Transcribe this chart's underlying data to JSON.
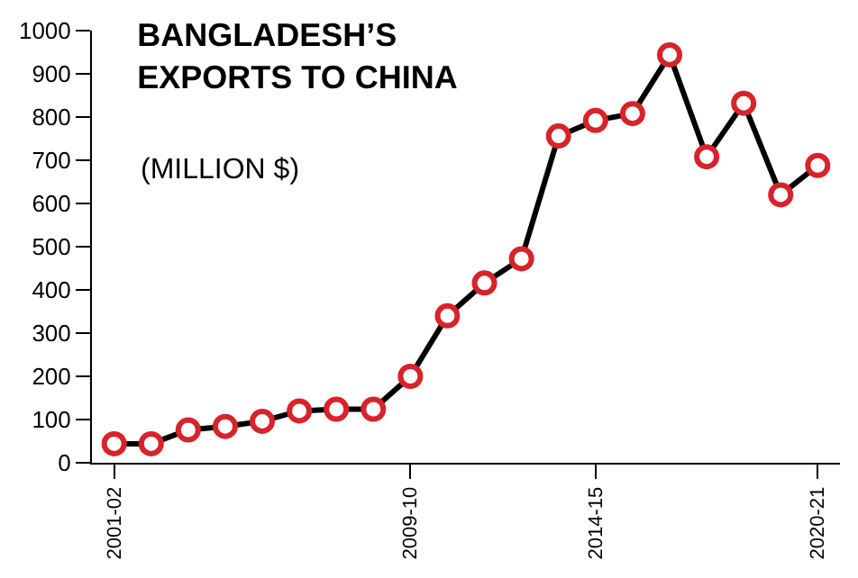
{
  "chart_data": {
    "type": "line",
    "title": "BANGLADESH’S\nEXPORTS TO CHINA",
    "subtitle": "(MILLION $)",
    "categories": [
      "2001-02",
      null,
      null,
      null,
      null,
      null,
      null,
      null,
      "2009-10",
      null,
      null,
      null,
      null,
      "2014-15",
      null,
      null,
      null,
      null,
      null,
      "2020-21"
    ],
    "series": [
      {
        "color": "#000000",
        "colors": [
          "#d7232a",
          "#d7232a",
          "#d7232a",
          "#d7232a",
          "#d7232a",
          "#d7232a",
          "#d7232a",
          "#d7232a",
          "#d7232a",
          "#d7232a",
          "#d7232a",
          "#d7232a",
          "#d7232a",
          "#d7232a",
          "#d7232a",
          "#d7232a",
          "#d7232a",
          "#d7232a",
          "#d7232a",
          "#d7232a"
        ],
        "values": [
          44,
          44,
          76,
          84,
          96,
          120,
          124,
          124,
          200,
          340,
          416,
          472,
          756,
          792,
          808,
          944,
          708,
          832,
          620,
          688
        ]
      }
    ],
    "ylim": [
      0,
      1000
    ],
    "yticks": [
      0,
      100,
      200,
      300,
      400,
      500,
      600,
      700,
      800,
      900,
      1000
    ],
    "legend": false,
    "marker": "circle",
    "line_style": "solid"
  }
}
